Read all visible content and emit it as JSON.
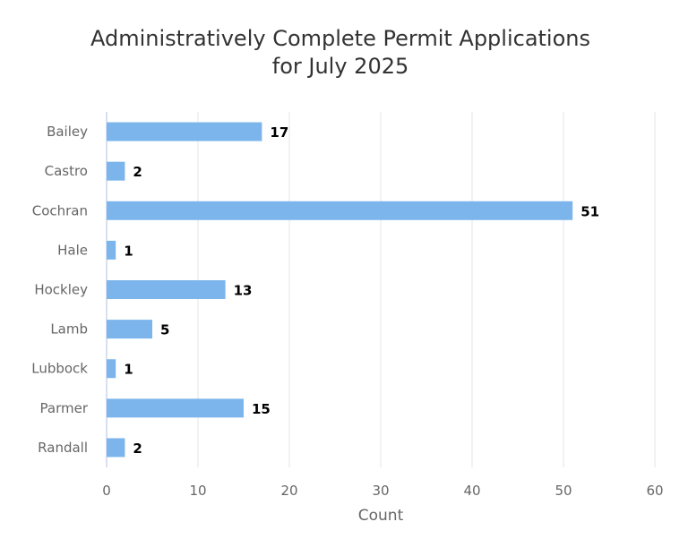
{
  "chart_data": {
    "type": "bar",
    "orientation": "horizontal",
    "title": [
      "Administratively Complete Permit Applications",
      "for July 2025"
    ],
    "categories": [
      "Bailey",
      "Castro",
      "Cochran",
      "Hale",
      "Hockley",
      "Lamb",
      "Lubbock",
      "Parmer",
      "Randall"
    ],
    "values": [
      17,
      2,
      51,
      1,
      13,
      5,
      1,
      15,
      2
    ],
    "xlabel": "Count",
    "ylabel": "",
    "xlim": [
      0,
      60
    ],
    "xticks": [
      "0",
      "10",
      "20",
      "30",
      "40",
      "50",
      "60"
    ],
    "grid": true,
    "legend": "none",
    "colors": {
      "bar": "#7cb5ec",
      "grid": "#e6e6e6",
      "axis": "#ccd6eb",
      "title": "#333333",
      "label": "#666666"
    }
  }
}
